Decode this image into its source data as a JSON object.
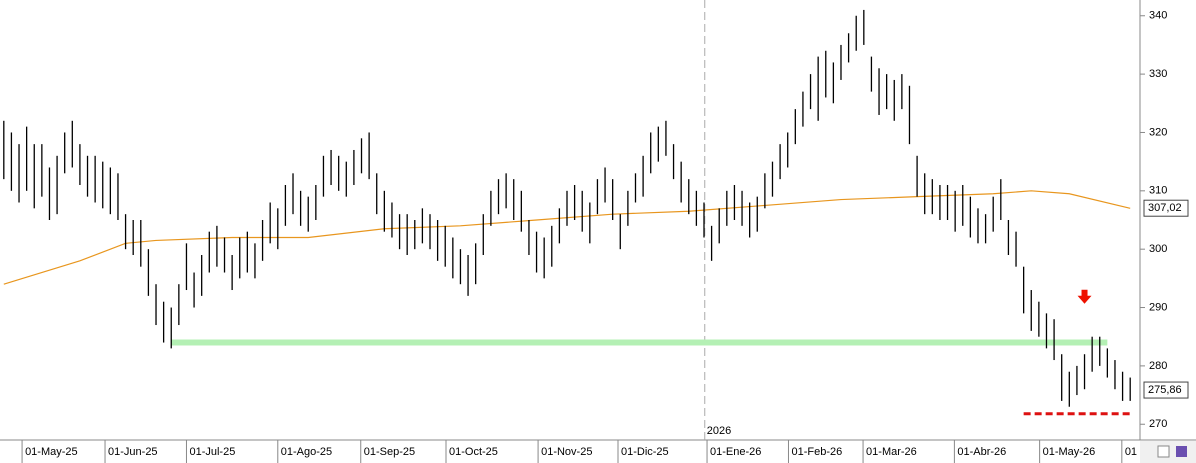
{
  "chart_data": {
    "type": "ohlc",
    "bars": {
      "color": "#000000",
      "high": [
        322,
        320,
        318,
        321,
        318,
        318,
        314,
        316,
        320,
        322,
        318,
        316,
        316,
        315,
        314,
        313,
        306,
        305,
        305,
        300,
        294,
        291,
        290,
        294,
        301,
        296,
        299,
        303,
        304,
        302,
        299,
        302,
        303,
        301,
        305,
        308,
        307,
        311,
        313,
        310,
        309,
        311,
        316,
        317,
        316,
        315,
        317,
        319,
        320,
        313,
        310,
        308,
        306,
        306,
        305,
        307,
        306,
        305,
        304,
        302,
        300,
        299,
        301,
        306,
        310,
        312,
        313,
        312,
        310,
        305,
        303,
        302,
        304,
        307,
        310,
        311,
        310,
        308,
        312,
        314,
        312,
        306,
        310,
        313,
        316,
        320,
        321,
        322,
        318,
        315,
        312,
        310,
        308,
        304,
        307,
        310,
        311,
        310,
        308,
        309,
        313,
        315,
        318,
        320,
        324,
        327,
        330,
        333,
        334,
        332,
        335,
        337,
        340,
        341,
        333,
        331,
        330,
        329,
        330,
        328,
        316,
        313,
        312,
        311,
        311,
        310,
        311,
        309,
        307,
        306,
        309,
        312,
        305,
        303,
        297,
        293,
        291,
        289,
        288,
        282,
        279,
        280,
        282,
        285,
        285,
        283,
        281,
        279,
        278
      ],
      "low": [
        312,
        310,
        308,
        310,
        307,
        309,
        305,
        306,
        313,
        314,
        311,
        309,
        308,
        307,
        306,
        305,
        300,
        299,
        297,
        292,
        287,
        284,
        283,
        287,
        293,
        290,
        292,
        296,
        297,
        296,
        293,
        295,
        296,
        295,
        298,
        301,
        300,
        304,
        306,
        304,
        303,
        305,
        309,
        311,
        310,
        309,
        311,
        313,
        312,
        306,
        303,
        302,
        300,
        299,
        300,
        301,
        300,
        298,
        297,
        295,
        294,
        292,
        294,
        299,
        304,
        306,
        307,
        305,
        303,
        299,
        296,
        295,
        297,
        301,
        304,
        305,
        303,
        301,
        306,
        308,
        305,
        300,
        304,
        308,
        309,
        313,
        315,
        316,
        312,
        308,
        306,
        304,
        302,
        298,
        301,
        304,
        305,
        304,
        302,
        303,
        307,
        309,
        312,
        314,
        318,
        321,
        324,
        322,
        326,
        325,
        329,
        332,
        334,
        335,
        327,
        323,
        324,
        322,
        324,
        318,
        309,
        306,
        306,
        305,
        305,
        303,
        304,
        302,
        301,
        301,
        303,
        305,
        299,
        297,
        289,
        286,
        285,
        283,
        281,
        274,
        273,
        275,
        276,
        279,
        280,
        278,
        276,
        274,
        274
      ]
    },
    "moving_average": {
      "color": "#e8961e",
      "x": [
        0,
        10,
        16,
        20,
        30,
        40,
        50,
        60,
        70,
        80,
        90,
        100,
        110,
        120,
        130,
        135,
        140,
        148
      ],
      "values": [
        294,
        298,
        301,
        301.5,
        302,
        302,
        303.5,
        304,
        305,
        306,
        306.5,
        307.5,
        308.5,
        309,
        309.5,
        310,
        309.5,
        307
      ]
    },
    "support": {
      "value": 284,
      "from": 22,
      "to": 145,
      "color": "#b4f0b4"
    },
    "low_line": {
      "value": 271.8,
      "from": 134,
      "to": 148,
      "color": "#dd1111"
    },
    "arrow": {
      "x": 142,
      "y": 291,
      "color": "#ee1100"
    },
    "price_labels": {
      "values": [
        307.02,
        275.86
      ],
      "value_labels": [
        "307,02",
        "275,86"
      ]
    },
    "year_marker": {
      "value": 92.1,
      "label": "2026"
    },
    "xlim": [
      -0.5,
      148.5
    ],
    "xticks": [
      {
        "value": 2.4,
        "label": "01-May-25"
      },
      {
        "value": 13.3,
        "label": "01-Jun-25"
      },
      {
        "value": 24.0,
        "label": "01-Jul-25"
      },
      {
        "value": 36.0,
        "label": "01-Ago-25"
      },
      {
        "value": 46.9,
        "label": "01-Sep-25"
      },
      {
        "value": 58.1,
        "label": "01-Oct-25"
      },
      {
        "value": 70.2,
        "label": "01-Nov-25"
      },
      {
        "value": 80.7,
        "label": "01-Dic-25"
      },
      {
        "value": 92.4,
        "label": "01-Ene-26"
      },
      {
        "value": 103.1,
        "label": "01-Feb-26"
      },
      {
        "value": 112.9,
        "label": "01-Mar-26"
      },
      {
        "value": 124.9,
        "label": "01-Abr-26"
      },
      {
        "value": 136.1,
        "label": "01-May-26"
      },
      {
        "value": 146.9,
        "label": "01"
      }
    ],
    "ylim": [
      267.3,
      342.7
    ],
    "yticks": [
      270,
      280,
      290,
      300,
      310,
      320,
      330,
      340
    ]
  }
}
